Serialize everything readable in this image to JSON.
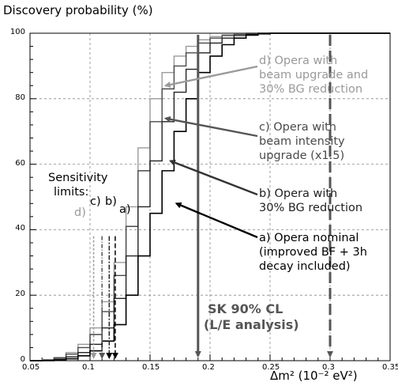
{
  "chart_data": {
    "type": "line",
    "title": "",
    "ylabel": "Discovery probability (%)",
    "xlabel": "Δm² (10⁻² eV²)",
    "xlim": [
      0.05,
      0.35
    ],
    "ylim": [
      0,
      100
    ],
    "grid": true,
    "x_ticks": [
      "0.05",
      "0.1",
      "0.15",
      "0.2",
      "0.25",
      "0.3",
      "0.35"
    ],
    "y_ticks": [
      "0",
      "20",
      "40",
      "60",
      "80",
      "100"
    ],
    "colors": {
      "a": "#000000",
      "b": "#222222",
      "c": "#4a4a4a",
      "d": "#9a9a9a",
      "arrow_grey": "#555555",
      "grid": "#888888"
    },
    "x": [
      0.05,
      0.06,
      0.07,
      0.08,
      0.09,
      0.1,
      0.11,
      0.12,
      0.13,
      0.14,
      0.15,
      0.16,
      0.17,
      0.18,
      0.19,
      0.2,
      0.21,
      0.22,
      0.23,
      0.24,
      0.25,
      0.26,
      0.27,
      0.28,
      0.29,
      0.3,
      0.31,
      0.32,
      0.33,
      0.34,
      0.35
    ],
    "series": [
      {
        "key": "d",
        "name": "d) Opera with beam upgrade and 30% BG reduction",
        "values": [
          0,
          0.3,
          1,
          2.5,
          5,
          10,
          18,
          30,
          47,
          65,
          80,
          88,
          93,
          96,
          98,
          99,
          99.5,
          99.8,
          100,
          100,
          100,
          100,
          100,
          100,
          100,
          100,
          100,
          100,
          100,
          100,
          100
        ]
      },
      {
        "key": "c",
        "name": "c) Opera with beam intensity upgrade (x1.5)",
        "values": [
          0,
          0.2,
          0.8,
          2,
          4,
          8,
          15,
          26,
          41,
          58,
          73,
          83,
          90,
          94,
          97,
          98.5,
          99.3,
          99.7,
          100,
          100,
          100,
          100,
          100,
          100,
          100,
          100,
          100,
          100,
          100,
          100,
          100
        ]
      },
      {
        "key": "b",
        "name": "b) Opera with 30% BG reduction",
        "values": [
          0,
          0.1,
          0.4,
          1.2,
          2.5,
          5,
          10,
          19,
          32,
          47,
          61,
          73,
          82,
          89,
          94,
          97,
          98.5,
          99.3,
          99.7,
          100,
          100,
          100,
          100,
          100,
          100,
          100,
          100,
          100,
          100,
          100,
          100
        ]
      },
      {
        "key": "a",
        "name": "a) Opera nominal (improved BF + 3h decay included)",
        "values": [
          0,
          0,
          0.2,
          0.6,
          1.5,
          3,
          6,
          11,
          20,
          32,
          45,
          58,
          70,
          80,
          88,
          93,
          96.5,
          98.5,
          99.4,
          99.8,
          100,
          100,
          100,
          100,
          100,
          100,
          100,
          100,
          100,
          100,
          100
        ]
      }
    ],
    "sensitivity_limits": {
      "a": 0.121,
      "b": 0.116,
      "c": 0.11,
      "d": 0.103
    },
    "sk_cl_lines": [
      0.19,
      0.3
    ],
    "annotations": {
      "sensitivity_title": [
        "Sensitivity",
        "limits:"
      ],
      "sens_d": "d)",
      "sens_c": "c)",
      "sens_b": "b)",
      "sens_a": "a)",
      "label_d": [
        "d) Opera with",
        "beam upgrade and",
        "30% BG reduction"
      ],
      "label_c": [
        "c) Opera with",
        "beam intensity",
        "upgrade (x1.5)"
      ],
      "label_b": [
        "b) Opera with",
        "30% BG reduction"
      ],
      "label_a": [
        "a) Opera  nominal",
        "(improved BF + 3h",
        "decay included)"
      ],
      "sk_cl": [
        "SK 90% CL",
        "(L/E analysis)"
      ]
    }
  }
}
